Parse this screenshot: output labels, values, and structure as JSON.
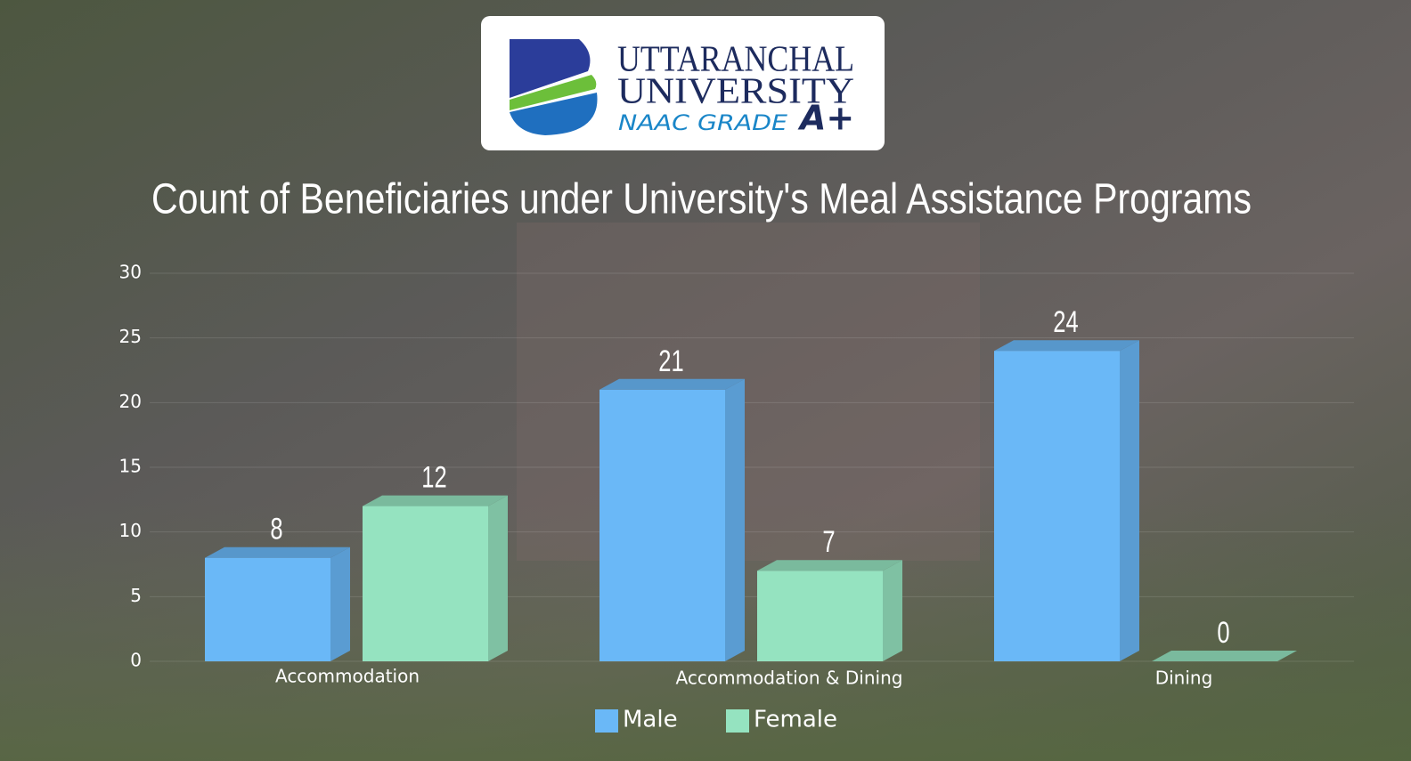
{
  "logo": {
    "name_line1": "UTTARANCHAL",
    "name_line2": "UNIVERSITY",
    "grade_text": "NAAC GRADE",
    "grade": "A+"
  },
  "chart_data": {
    "type": "bar3d",
    "title": "Count of Beneficiaries under University's Meal Assistance Programs",
    "categories": [
      "Accommodation",
      "Accommodation & Dining",
      "Dining"
    ],
    "series": [
      {
        "name": "Male",
        "color": "#6ab8f7",
        "values": [
          8,
          21,
          24
        ]
      },
      {
        "name": "Female",
        "color": "#95e3c0",
        "values": [
          12,
          7,
          0
        ]
      }
    ],
    "ylim": [
      0,
      30
    ],
    "yticks": [
      0,
      5,
      10,
      15,
      20,
      25,
      30
    ],
    "grid": true,
    "legend": "bottom"
  }
}
